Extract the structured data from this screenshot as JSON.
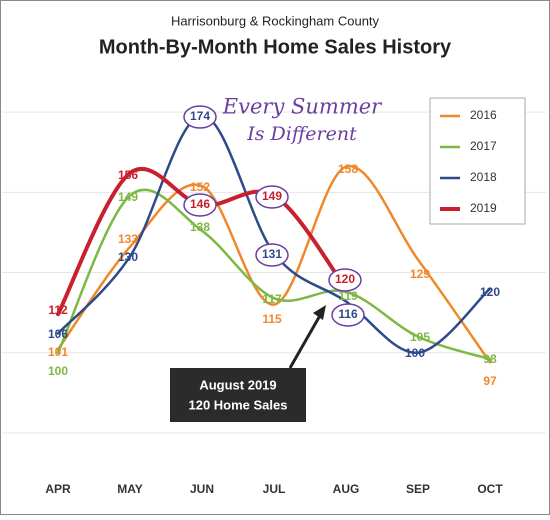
{
  "chart_data": {
    "type": "line",
    "subtitle": "Harrisonburg & Rockingham County",
    "title": "Month-By-Month Home Sales History",
    "annotations": [
      "Every Summer",
      "Is Different",
      "August 2019",
      "120 Home Sales"
    ],
    "categories": [
      "APR",
      "MAY",
      "JUN",
      "JUL",
      "AUG",
      "SEP",
      "OCT"
    ],
    "series": [
      {
        "name": "2016",
        "color": "#f0882a",
        "values": [
          101,
          133,
          152,
          115,
          158,
          129,
          97
        ]
      },
      {
        "name": "2017",
        "color": "#7db843",
        "values": [
          100,
          149,
          138,
          117,
          119,
          105,
          98
        ]
      },
      {
        "name": "2018",
        "color": "#2e4a8a",
        "values": [
          106,
          130,
          174,
          131,
          116,
          100,
          120
        ]
      },
      {
        "name": "2019",
        "color": "#c8202e",
        "values": [
          112,
          156,
          146,
          149,
          120,
          null,
          null
        ]
      }
    ],
    "ylim": [
      65,
      190
    ],
    "yticks": [
      75,
      100,
      125,
      150,
      175
    ],
    "grid": true,
    "legend": "top-right"
  }
}
